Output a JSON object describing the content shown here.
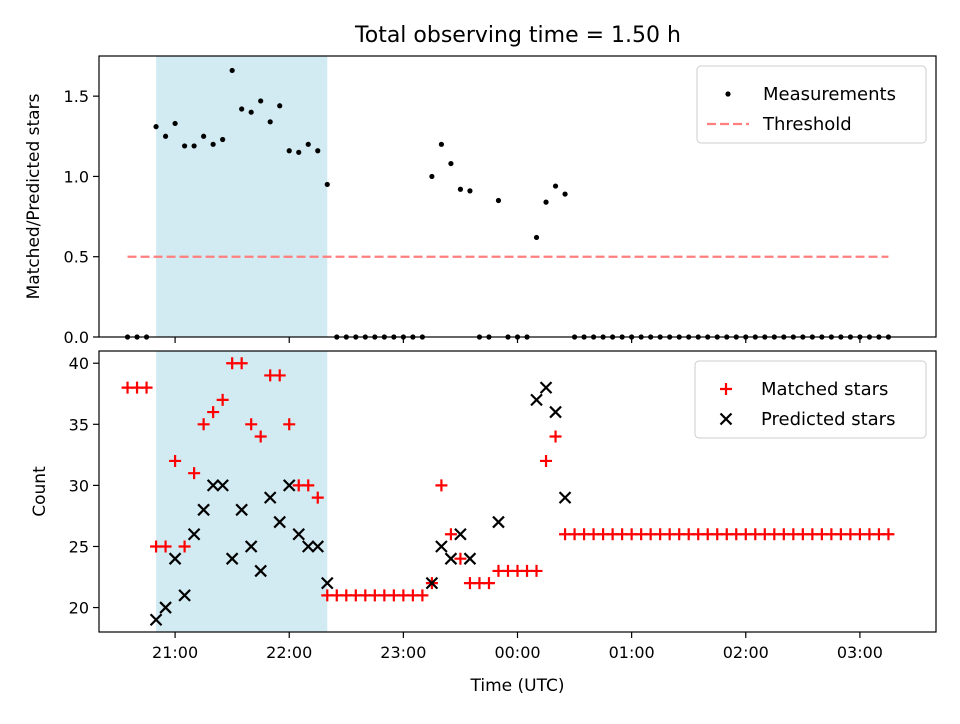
{
  "title": "Total observing time = 1.50 h",
  "colors": {
    "measurement": "#000000",
    "threshold": "#ff7f7f",
    "matched": "#ff0000",
    "predicted": "#000000",
    "highlight": "#add8e6"
  },
  "chart_data": [
    {
      "type": "scatter",
      "panel": "top",
      "xlabel": "",
      "ylabel": "Matched/Predicted stars",
      "ylim": [
        0,
        1.75
      ],
      "yticks": [
        0.0,
        0.5,
        1.0,
        1.5
      ],
      "ytick_labels": [
        "0.0",
        "0.5",
        "1.0",
        "1.5"
      ],
      "xlim": [
        "20:20",
        "03:40"
      ],
      "xticks": [
        "21:00",
        "22:00",
        "23:00",
        "00:00",
        "01:00",
        "02:00",
        "03:00"
      ],
      "shaded_span": [
        "20:50",
        "22:20"
      ],
      "legend": {
        "position": "top-right",
        "entries": [
          "Measurements",
          "Threshold"
        ]
      },
      "threshold": {
        "name": "Threshold",
        "y": 0.5,
        "x_range": [
          "20:35",
          "03:15"
        ]
      },
      "series": [
        {
          "name": "Measurements",
          "points": [
            [
              "20:35",
              0
            ],
            [
              "20:40",
              0
            ],
            [
              "20:45",
              0
            ],
            [
              "20:50",
              1.31
            ],
            [
              "20:55",
              1.25
            ],
            [
              "21:00",
              1.33
            ],
            [
              "21:05",
              1.19
            ],
            [
              "21:10",
              1.19
            ],
            [
              "21:15",
              1.25
            ],
            [
              "21:20",
              1.2
            ],
            [
              "21:25",
              1.23
            ],
            [
              "21:30",
              1.66
            ],
            [
              "21:35",
              1.42
            ],
            [
              "21:40",
              1.4
            ],
            [
              "21:45",
              1.47
            ],
            [
              "21:50",
              1.34
            ],
            [
              "21:55",
              1.44
            ],
            [
              "22:00",
              1.16
            ],
            [
              "22:05",
              1.15
            ],
            [
              "22:10",
              1.2
            ],
            [
              "22:15",
              1.16
            ],
            [
              "22:20",
              0.95
            ],
            [
              "22:25",
              0
            ],
            [
              "22:30",
              0
            ],
            [
              "22:35",
              0
            ],
            [
              "22:40",
              0
            ],
            [
              "22:45",
              0
            ],
            [
              "22:50",
              0
            ],
            [
              "22:55",
              0
            ],
            [
              "23:00",
              0
            ],
            [
              "23:05",
              0
            ],
            [
              "23:10",
              0
            ],
            [
              "23:15",
              1.0
            ],
            [
              "23:20",
              1.2
            ],
            [
              "23:25",
              1.08
            ],
            [
              "23:30",
              0.92
            ],
            [
              "23:35",
              0.91
            ],
            [
              "23:40",
              0
            ],
            [
              "23:45",
              0
            ],
            [
              "23:50",
              0.85
            ],
            [
              "23:55",
              0
            ],
            [
              "00:00",
              0
            ],
            [
              "00:05",
              0
            ],
            [
              "00:10",
              0.62
            ],
            [
              "00:15",
              0.84
            ],
            [
              "00:20",
              0.94
            ],
            [
              "00:25",
              0.89
            ],
            [
              "00:30",
              0
            ],
            [
              "00:35",
              0
            ],
            [
              "00:40",
              0
            ],
            [
              "00:45",
              0
            ],
            [
              "00:50",
              0
            ],
            [
              "00:55",
              0
            ],
            [
              "01:00",
              0
            ],
            [
              "01:05",
              0
            ],
            [
              "01:10",
              0
            ],
            [
              "01:15",
              0
            ],
            [
              "01:20",
              0
            ],
            [
              "01:25",
              0
            ],
            [
              "01:30",
              0
            ],
            [
              "01:35",
              0
            ],
            [
              "01:40",
              0
            ],
            [
              "01:45",
              0
            ],
            [
              "01:50",
              0
            ],
            [
              "01:55",
              0
            ],
            [
              "02:00",
              0
            ],
            [
              "02:05",
              0
            ],
            [
              "02:10",
              0
            ],
            [
              "02:15",
              0
            ],
            [
              "02:20",
              0
            ],
            [
              "02:25",
              0
            ],
            [
              "02:30",
              0
            ],
            [
              "02:35",
              0
            ],
            [
              "02:40",
              0
            ],
            [
              "02:45",
              0
            ],
            [
              "02:50",
              0
            ],
            [
              "02:55",
              0
            ],
            [
              "03:00",
              0
            ],
            [
              "03:05",
              0
            ],
            [
              "03:10",
              0
            ],
            [
              "03:15",
              0
            ]
          ]
        }
      ]
    },
    {
      "type": "scatter",
      "panel": "bottom",
      "xlabel": "Time (UTC)",
      "ylabel": "Count",
      "ylim": [
        18,
        41
      ],
      "yticks": [
        20,
        25,
        30,
        35,
        40
      ],
      "ytick_labels": [
        "20",
        "25",
        "30",
        "35",
        "40"
      ],
      "xlim": [
        "20:20",
        "03:40"
      ],
      "xticks": [
        "21:00",
        "22:00",
        "23:00",
        "00:00",
        "01:00",
        "02:00",
        "03:00"
      ],
      "xtick_labels": [
        "21:00",
        "22:00",
        "23:00",
        "00:00",
        "01:00",
        "02:00",
        "03:00"
      ],
      "shaded_span": [
        "20:50",
        "22:20"
      ],
      "legend": {
        "position": "top-right",
        "entries": [
          "Matched stars",
          "Predicted stars"
        ]
      },
      "series": [
        {
          "name": "Matched stars",
          "marker": "plus",
          "points": [
            [
              "20:35",
              38
            ],
            [
              "20:40",
              38
            ],
            [
              "20:45",
              38
            ],
            [
              "20:50",
              25
            ],
            [
              "20:55",
              25
            ],
            [
              "21:00",
              32
            ],
            [
              "21:05",
              25
            ],
            [
              "21:10",
              31
            ],
            [
              "21:15",
              35
            ],
            [
              "21:20",
              36
            ],
            [
              "21:25",
              37
            ],
            [
              "21:30",
              40
            ],
            [
              "21:35",
              40
            ],
            [
              "21:40",
              35
            ],
            [
              "21:45",
              34
            ],
            [
              "21:50",
              39
            ],
            [
              "21:55",
              39
            ],
            [
              "22:00",
              35
            ],
            [
              "22:05",
              30
            ],
            [
              "22:10",
              30
            ],
            [
              "22:15",
              29
            ],
            [
              "22:20",
              21
            ],
            [
              "22:25",
              21
            ],
            [
              "22:30",
              21
            ],
            [
              "22:35",
              21
            ],
            [
              "22:40",
              21
            ],
            [
              "22:45",
              21
            ],
            [
              "22:50",
              21
            ],
            [
              "22:55",
              21
            ],
            [
              "23:00",
              21
            ],
            [
              "23:05",
              21
            ],
            [
              "23:10",
              21
            ],
            [
              "23:15",
              22
            ],
            [
              "23:20",
              30
            ],
            [
              "23:25",
              26
            ],
            [
              "23:30",
              24
            ],
            [
              "23:35",
              22
            ],
            [
              "23:40",
              22
            ],
            [
              "23:45",
              22
            ],
            [
              "23:50",
              23
            ],
            [
              "23:55",
              23
            ],
            [
              "00:00",
              23
            ],
            [
              "00:05",
              23
            ],
            [
              "00:10",
              23
            ],
            [
              "00:15",
              32
            ],
            [
              "00:20",
              34
            ],
            [
              "00:25",
              26
            ],
            [
              "00:30",
              26
            ],
            [
              "00:35",
              26
            ],
            [
              "00:40",
              26
            ],
            [
              "00:45",
              26
            ],
            [
              "00:50",
              26
            ],
            [
              "00:55",
              26
            ],
            [
              "01:00",
              26
            ],
            [
              "01:05",
              26
            ],
            [
              "01:10",
              26
            ],
            [
              "01:15",
              26
            ],
            [
              "01:20",
              26
            ],
            [
              "01:25",
              26
            ],
            [
              "01:30",
              26
            ],
            [
              "01:35",
              26
            ],
            [
              "01:40",
              26
            ],
            [
              "01:45",
              26
            ],
            [
              "01:50",
              26
            ],
            [
              "01:55",
              26
            ],
            [
              "02:00",
              26
            ],
            [
              "02:05",
              26
            ],
            [
              "02:10",
              26
            ],
            [
              "02:15",
              26
            ],
            [
              "02:20",
              26
            ],
            [
              "02:25",
              26
            ],
            [
              "02:30",
              26
            ],
            [
              "02:35",
              26
            ],
            [
              "02:40",
              26
            ],
            [
              "02:45",
              26
            ],
            [
              "02:50",
              26
            ],
            [
              "02:55",
              26
            ],
            [
              "03:00",
              26
            ],
            [
              "03:05",
              26
            ],
            [
              "03:10",
              26
            ],
            [
              "03:15",
              26
            ]
          ]
        },
        {
          "name": "Predicted stars",
          "marker": "x",
          "points": [
            [
              "20:50",
              19
            ],
            [
              "20:55",
              20
            ],
            [
              "21:00",
              24
            ],
            [
              "21:05",
              21
            ],
            [
              "21:10",
              26
            ],
            [
              "21:15",
              28
            ],
            [
              "21:20",
              30
            ],
            [
              "21:25",
              30
            ],
            [
              "21:30",
              24
            ],
            [
              "21:35",
              28
            ],
            [
              "21:40",
              25
            ],
            [
              "21:45",
              23
            ],
            [
              "21:50",
              29
            ],
            [
              "21:55",
              27
            ],
            [
              "22:00",
              30
            ],
            [
              "22:05",
              26
            ],
            [
              "22:10",
              25
            ],
            [
              "22:15",
              25
            ],
            [
              "22:20",
              22
            ],
            [
              "23:15",
              22
            ],
            [
              "23:20",
              25
            ],
            [
              "23:25",
              24
            ],
            [
              "23:30",
              26
            ],
            [
              "23:35",
              24
            ],
            [
              "23:50",
              27
            ],
            [
              "00:10",
              37
            ],
            [
              "00:15",
              38
            ],
            [
              "00:20",
              36
            ],
            [
              "00:25",
              29
            ]
          ]
        }
      ]
    }
  ]
}
